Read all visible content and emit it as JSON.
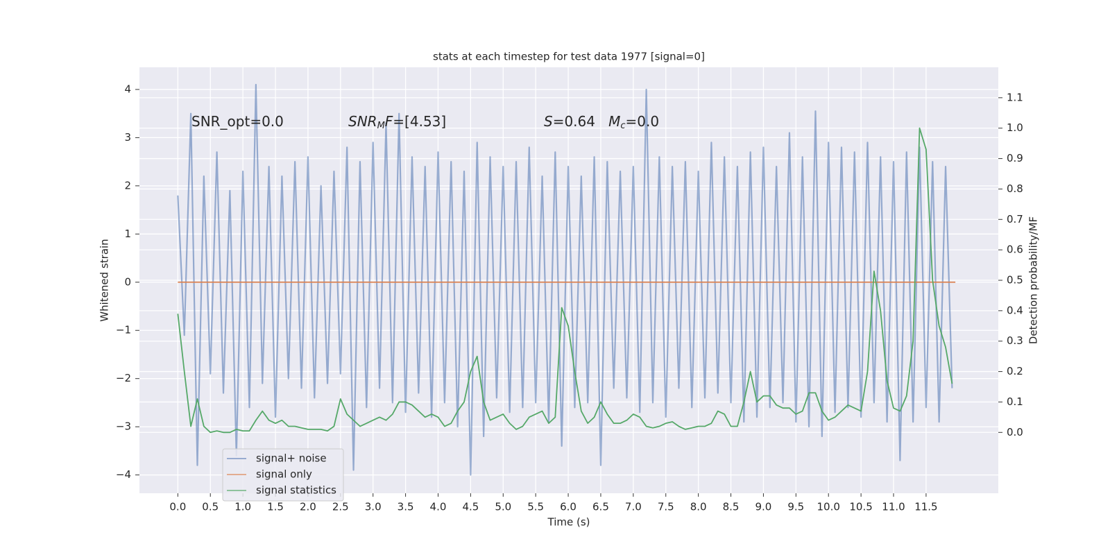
{
  "chart_data": {
    "type": "line",
    "title": "stats at each timestep for test data 1977 [signal=0]",
    "xlabel": "Time (s)",
    "ylabel": "Whitened strain",
    "y2label": "Detection probability/MF",
    "annotations": [
      {
        "segments": [
          {
            "text": "SNR_opt=0.0"
          }
        ]
      },
      {
        "segments": [
          {
            "text": "SNR",
            "style": "italic"
          },
          {
            "text": "M",
            "style": "sub"
          },
          {
            "text": "F",
            "style": "italic"
          },
          {
            "text": "=[4.53]"
          }
        ]
      },
      {
        "segments": [
          {
            "text": "S",
            "style": "italic"
          },
          {
            "text": "=0.64   "
          },
          {
            "text": "M",
            "style": "italic"
          },
          {
            "text": "c",
            "style": "sub"
          },
          {
            "text": "=0.0"
          }
        ]
      }
    ],
    "x": [
      0,
      0.1,
      0.2,
      0.3,
      0.4,
      0.5,
      0.6,
      0.7,
      0.8,
      0.9,
      1,
      1.1,
      1.2,
      1.3,
      1.4,
      1.5,
      1.6,
      1.7,
      1.8,
      1.9,
      2,
      2.1,
      2.2,
      2.3,
      2.4,
      2.5,
      2.6,
      2.7,
      2.8,
      2.9,
      3,
      3.1,
      3.2,
      3.3,
      3.4,
      3.5,
      3.6,
      3.7,
      3.8,
      3.9,
      4,
      4.1,
      4.2,
      4.3,
      4.4,
      4.5,
      4.6,
      4.7,
      4.8,
      4.9,
      5,
      5.1,
      5.2,
      5.3,
      5.4,
      5.5,
      5.6,
      5.7,
      5.8,
      5.9,
      6,
      6.1,
      6.2,
      6.3,
      6.4,
      6.5,
      6.6,
      6.7,
      6.8,
      6.9,
      7,
      7.1,
      7.2,
      7.3,
      7.4,
      7.5,
      7.6,
      7.7,
      7.8,
      7.9,
      8,
      8.1,
      8.2,
      8.3,
      8.4,
      8.5,
      8.6,
      8.7,
      8.8,
      8.9,
      9,
      9.1,
      9.2,
      9.3,
      9.4,
      9.5,
      9.6,
      9.7,
      9.8,
      9.9,
      10,
      10.1,
      10.2,
      10.3,
      10.4,
      10.5,
      10.6,
      10.7,
      10.8,
      10.9,
      11,
      11.1,
      11.2,
      11.3,
      11.4,
      11.5,
      11.6,
      11.7,
      11.8,
      11.9
    ],
    "series": [
      {
        "name": "signal+ noise",
        "color": "#4c72b0",
        "axis": "y",
        "values": [
          1.8,
          -1.1,
          3.5,
          -3.8,
          2.2,
          -1.9,
          2.7,
          -2.3,
          1.9,
          -3.6,
          2.3,
          -2.6,
          4.1,
          -2.1,
          2.4,
          -2.8,
          2.2,
          -2.0,
          2.5,
          -2.2,
          2.6,
          -2.4,
          2.0,
          -2.1,
          2.3,
          -1.9,
          2.8,
          -3.9,
          2.5,
          -2.6,
          2.9,
          -2.2,
          3.3,
          -2.5,
          3.5,
          -2.7,
          2.6,
          -2.3,
          2.4,
          -2.8,
          2.7,
          -2.5,
          2.5,
          -3.0,
          2.3,
          -4.0,
          2.9,
          -3.2,
          2.6,
          -2.4,
          2.4,
          -2.7,
          2.5,
          -2.6,
          2.8,
          -2.5,
          2.2,
          -2.9,
          2.7,
          -3.4,
          2.4,
          -2.6,
          2.2,
          -2.5,
          2.6,
          -3.8,
          2.5,
          -2.2,
          2.3,
          -2.4,
          2.4,
          -2.7,
          4.0,
          -2.5,
          2.6,
          -2.8,
          2.4,
          -2.2,
          2.5,
          -2.6,
          2.3,
          -2.4,
          2.9,
          -2.3,
          2.6,
          -2.5,
          2.4,
          -2.9,
          2.7,
          -2.8,
          2.8,
          -2.6,
          2.4,
          -2.5,
          3.1,
          -2.9,
          2.6,
          -3.0,
          3.55,
          -3.2,
          2.9,
          -2.7,
          2.8,
          -2.6,
          2.7,
          -2.8,
          2.9,
          -2.5,
          2.6,
          -2.9,
          2.5,
          -3.7,
          2.7,
          -2.9,
          2.8,
          -2.6,
          2.5,
          -2.9,
          2.4,
          -2.2
        ]
      },
      {
        "name": "signal only",
        "color": "#dd8452",
        "axis": "y",
        "x": [
          0,
          11.95
        ],
        "values": [
          0,
          0
        ]
      },
      {
        "name": "signal statistics",
        "color": "#55a868",
        "axis": "y2",
        "values": [
          0.39,
          0.2,
          0.02,
          0.11,
          0.02,
          0.0,
          0.005,
          0.0,
          0.0,
          0.01,
          0.005,
          0.005,
          0.04,
          0.07,
          0.04,
          0.03,
          0.04,
          0.02,
          0.02,
          0.015,
          0.01,
          0.01,
          0.01,
          0.005,
          0.02,
          0.11,
          0.06,
          0.04,
          0.02,
          0.03,
          0.04,
          0.05,
          0.04,
          0.06,
          0.1,
          0.1,
          0.09,
          0.07,
          0.05,
          0.06,
          0.05,
          0.02,
          0.03,
          0.07,
          0.1,
          0.2,
          0.25,
          0.1,
          0.04,
          0.05,
          0.06,
          0.03,
          0.01,
          0.02,
          0.05,
          0.06,
          0.07,
          0.03,
          0.05,
          0.41,
          0.35,
          0.2,
          0.07,
          0.03,
          0.05,
          0.1,
          0.06,
          0.03,
          0.03,
          0.04,
          0.06,
          0.05,
          0.02,
          0.015,
          0.02,
          0.03,
          0.035,
          0.02,
          0.01,
          0.015,
          0.02,
          0.02,
          0.03,
          0.07,
          0.06,
          0.02,
          0.02,
          0.1,
          0.2,
          0.1,
          0.12,
          0.12,
          0.09,
          0.08,
          0.08,
          0.06,
          0.07,
          0.13,
          0.13,
          0.07,
          0.04,
          0.05,
          0.07,
          0.09,
          0.08,
          0.07,
          0.2,
          0.53,
          0.4,
          0.17,
          0.08,
          0.07,
          0.12,
          0.3,
          1.0,
          0.93,
          0.5,
          0.35,
          0.28,
          0.16
        ]
      }
    ],
    "xlim": [
      -0.59,
      12.61
    ],
    "ylim": [
      -4.38,
      4.46
    ],
    "y2lim": [
      -0.2,
      1.2
    ],
    "xticks": [
      {
        "value": 0,
        "label": "0.0"
      },
      0.5,
      {
        "value": 1,
        "label": "1.0"
      },
      1.5,
      {
        "value": 2,
        "label": "2.0"
      },
      2.5,
      {
        "value": 3,
        "label": "3.0"
      },
      3.5,
      {
        "value": 4,
        "label": "4.0"
      },
      4.5,
      {
        "value": 5,
        "label": "5.0"
      },
      5.5,
      {
        "value": 6,
        "label": "6.0"
      },
      6.5,
      {
        "value": 7,
        "label": "7.0"
      },
      7.5,
      {
        "value": 8,
        "label": "8.0"
      },
      8.5,
      {
        "value": 9,
        "label": "9.0"
      },
      9.5,
      {
        "value": 10,
        "label": "10.0"
      },
      10.5,
      {
        "value": 11,
        "label": "11.0"
      },
      11.5
    ],
    "yticks": [
      {
        "value": -4,
        "label": "−4"
      },
      {
        "value": -3,
        "label": "−3"
      },
      {
        "value": -2,
        "label": "−2"
      },
      {
        "value": -1,
        "label": "−1"
      },
      0,
      1,
      2,
      3,
      4
    ],
    "y2ticks": [
      {
        "value": 0,
        "label": "0.0"
      },
      0.1,
      0.2,
      0.3,
      0.4,
      0.5,
      0.6,
      0.7,
      0.8,
      0.9,
      {
        "value": 1,
        "label": "1.0"
      },
      1.1
    ],
    "grid": true,
    "legend": "lower left"
  }
}
